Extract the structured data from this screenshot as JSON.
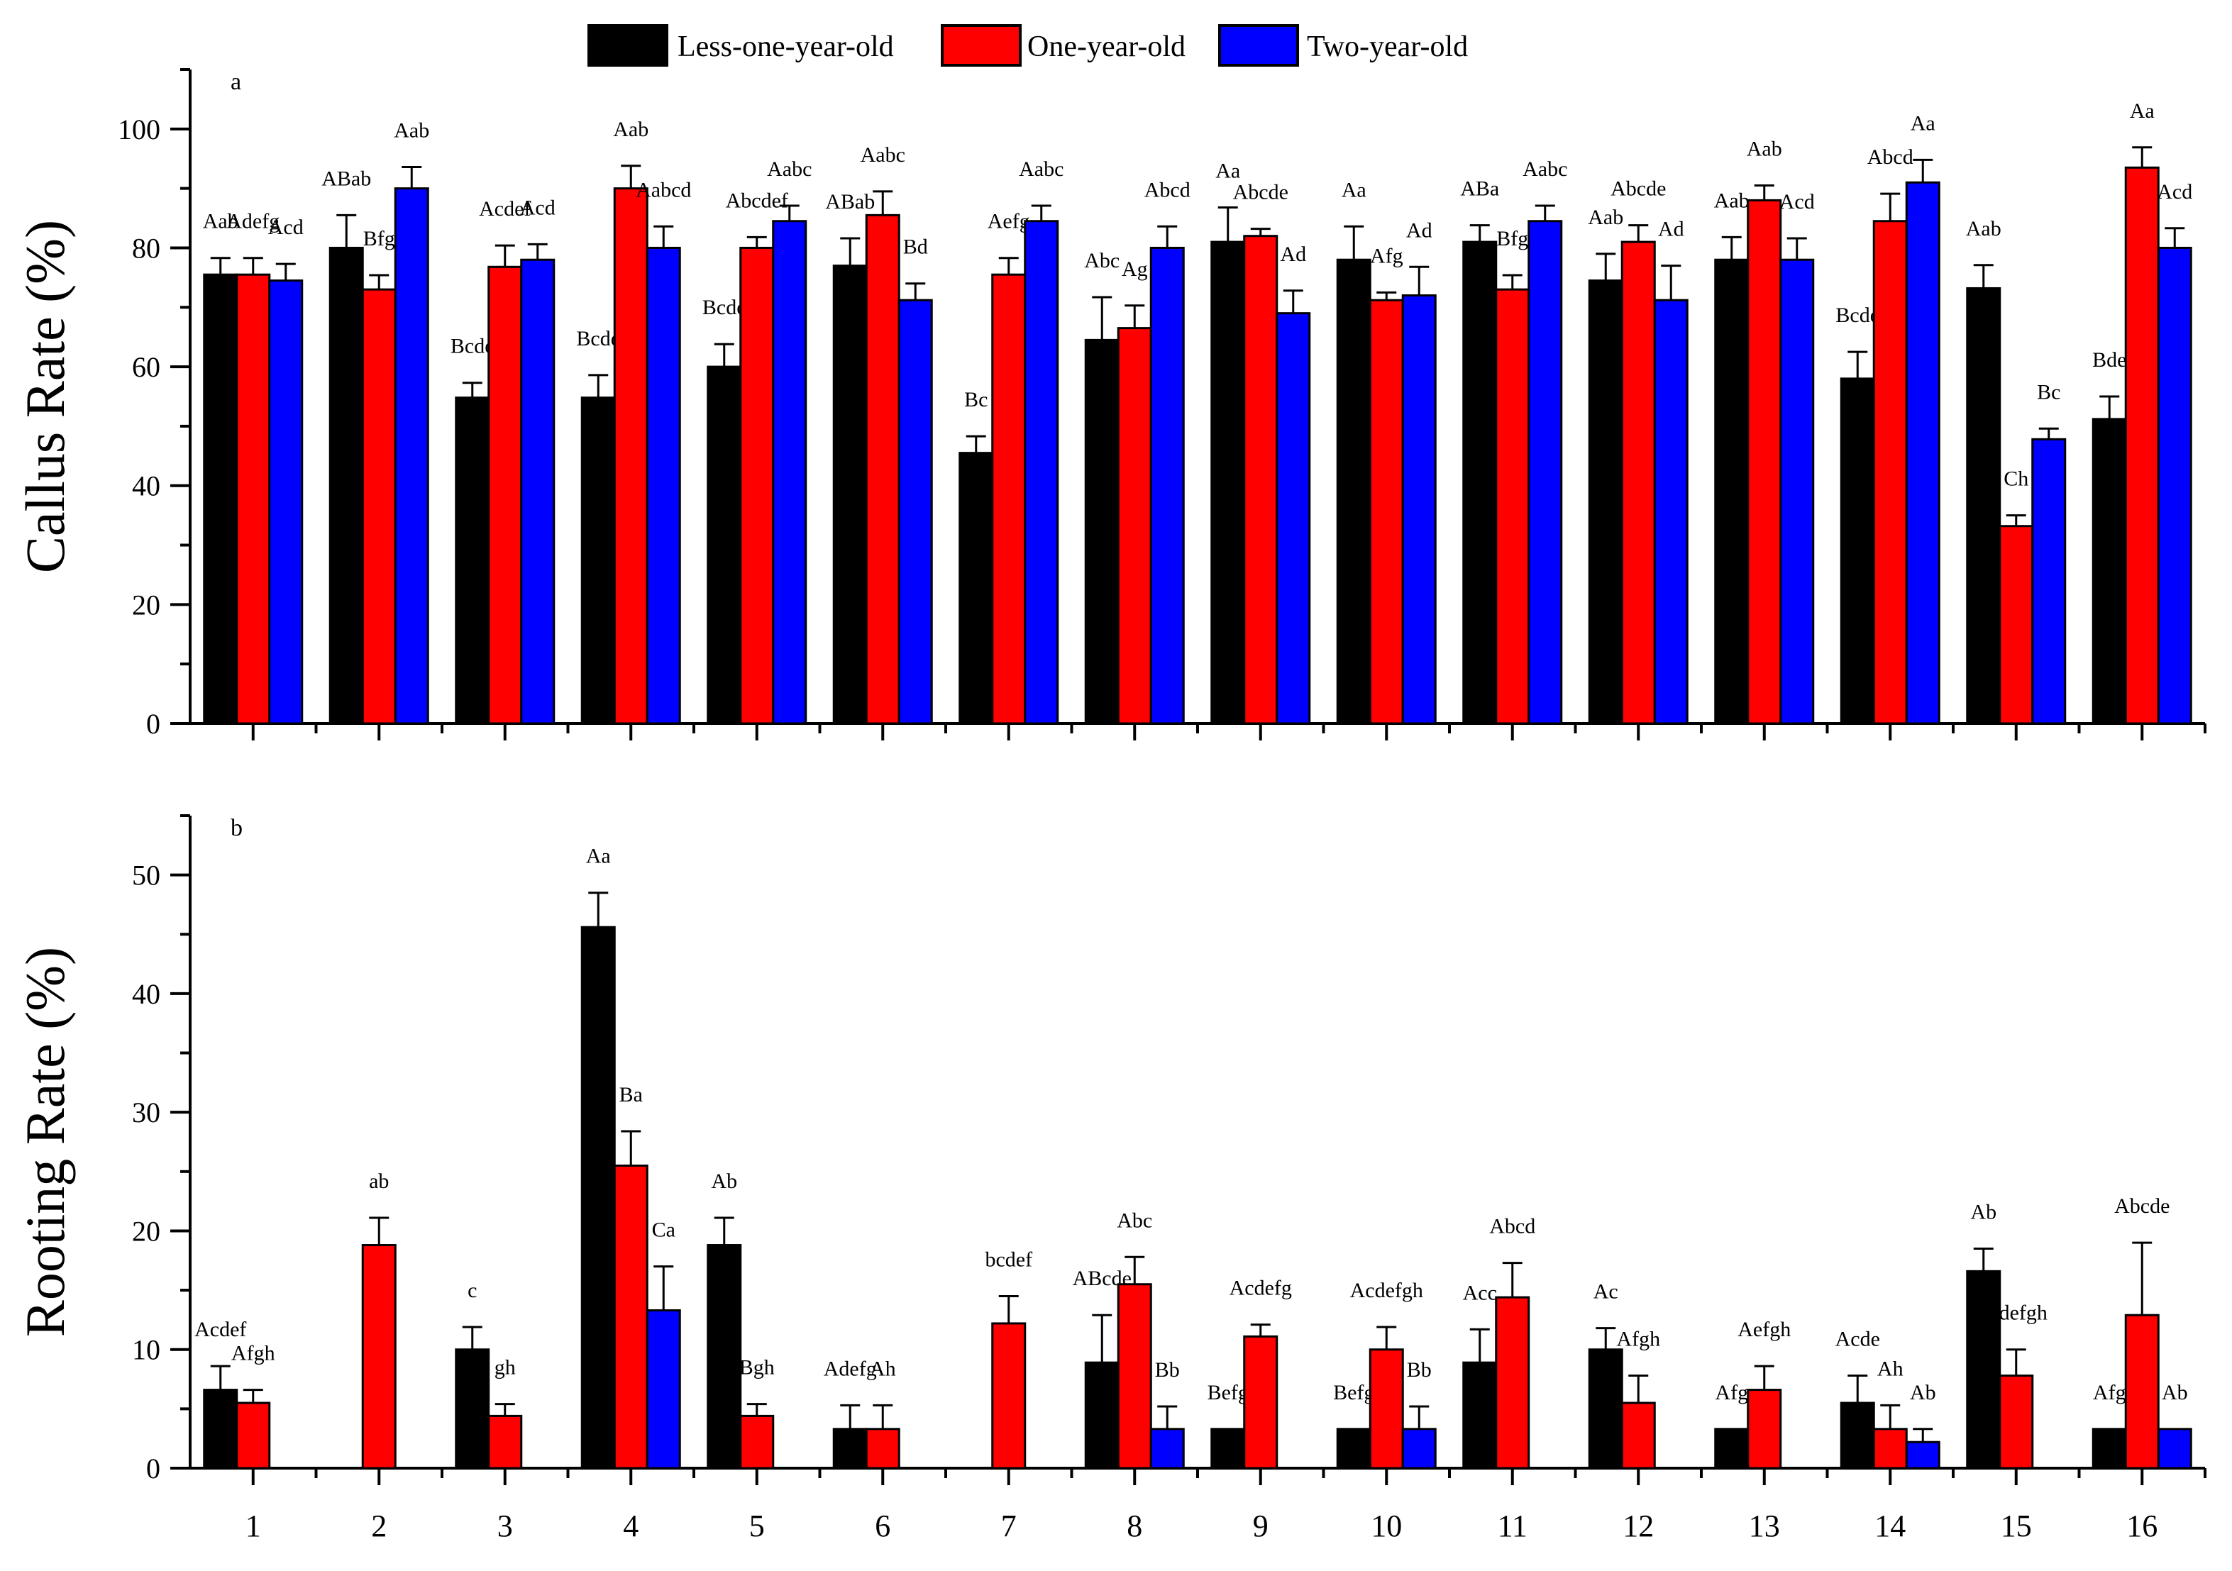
{
  "chart_data": {
    "type": "bar",
    "categories": [
      "1",
      "2",
      "3",
      "4",
      "5",
      "6",
      "7",
      "8",
      "9",
      "10",
      "11",
      "12",
      "13",
      "14",
      "15",
      "16"
    ],
    "legend": {
      "placement": "top-center",
      "entries": [
        {
          "name": "Less-one-year-old",
          "color": "#000000"
        },
        {
          "name": "One-year-old",
          "color": "#ff0000"
        },
        {
          "name": "Two-year-old",
          "color": "#0000ff"
        }
      ]
    },
    "panels": [
      {
        "id": "a",
        "panel_label": "a",
        "ylabel": "Callus Rate (%)",
        "xlabel": "",
        "ylim": [
          0,
          110
        ],
        "yticks": [
          0,
          20,
          40,
          60,
          80,
          100
        ],
        "series": [
          {
            "name": "Less-one-year-old",
            "values": [
              75.5,
              80,
              54.8,
              54.8,
              60,
              77,
              45.5,
              64.5,
              81,
              78,
              81,
              74.5,
              78,
              58,
              73.2,
              51.2
            ],
            "errors": [
              2.8,
              5.5,
              2.5,
              3.8,
              3.8,
              4.6,
              2.8,
              7.2,
              5.8,
              5.6,
              2.8,
              4.5,
              3.8,
              4.5,
              3.9,
              3.8
            ],
            "labels": [
              "Aab",
              "ABab",
              "Bcde",
              "Bcde",
              "Bcde",
              "ABab",
              "Bc",
              "Abc",
              "Aa",
              "Aa",
              "ABa",
              "Aab",
              "Aab",
              "Bcde",
              "Aab",
              "Bde"
            ]
          },
          {
            "name": "One-year-old",
            "values": [
              75.5,
              73,
              76.8,
              90,
              80,
              85.5,
              75.5,
              66.5,
              82,
              71.2,
              73,
              81,
              88,
              84.5,
              33.2,
              93.5
            ],
            "errors": [
              2.8,
              2.4,
              3.6,
              3.8,
              1.8,
              4,
              2.8,
              3.8,
              1.2,
              1.3,
              2.4,
              2.8,
              2.5,
              4.6,
              1.8,
              3.4
            ],
            "labels": [
              "Adefg",
              "Bfg",
              "Acdef",
              "Aab",
              "Abcdef",
              "Aabc",
              "Aefg",
              "Ag",
              "Abcde",
              "Afg",
              "Bfg",
              "Abcde",
              "Aab",
              "Abcd",
              "Ch",
              "Aa"
            ]
          },
          {
            "name": "Two-year-old",
            "values": [
              74.5,
              90,
              78,
              80,
              84.5,
              71.2,
              84.5,
              80,
              69,
              72,
              84.5,
              71.2,
              78,
              91,
              47.8,
              80
            ],
            "errors": [
              2.8,
              3.6,
              2.6,
              3.6,
              2.6,
              2.8,
              2.6,
              3.6,
              3.8,
              4.8,
              2.6,
              5.8,
              3.6,
              3.8,
              1.8,
              3.3
            ],
            "labels": [
              "Acd",
              "Aab",
              "Acd",
              "Aabcd",
              "Aabc",
              "Bd",
              "Aabc",
              "Abcd",
              "Ad",
              "Ad",
              "Aabc",
              "Ad",
              "Acd",
              "Aa",
              "Bc",
              "Acd"
            ]
          }
        ]
      },
      {
        "id": "b",
        "panel_label": "b",
        "ylabel": "Rooting Rate (%)",
        "xlabel": "",
        "ylim": [
          0,
          55
        ],
        "yticks": [
          0,
          10,
          20,
          30,
          40,
          50
        ],
        "series": [
          {
            "name": "Less-one-year-old",
            "values": [
              6.6,
              null,
              10,
              45.6,
              18.8,
              3.3,
              null,
              8.9,
              3.3,
              3.3,
              8.9,
              10,
              3.3,
              5.5,
              16.6,
              3.3
            ],
            "errors": [
              2,
              null,
              1.9,
              2.9,
              2.3,
              2,
              null,
              4,
              null,
              null,
              2.8,
              1.8,
              null,
              2.3,
              1.9,
              null
            ],
            "labels": [
              "Acdef",
              "",
              "c",
              "Aa",
              "Ab",
              "Adefg",
              "",
              "ABcde",
              "Befg",
              "Befg",
              "Acc",
              "Ac",
              "Afg",
              "Acde",
              "Ab",
              "Afg"
            ]
          },
          {
            "name": "One-year-old",
            "values": [
              5.5,
              18.8,
              4.4,
              25.5,
              4.4,
              3.3,
              12.2,
              15.5,
              11.1,
              10,
              14.4,
              5.5,
              6.6,
              3.3,
              7.8,
              12.9
            ],
            "errors": [
              1.1,
              2.3,
              1,
              2.9,
              1,
              2,
              2.3,
              2.3,
              1,
              1.9,
              2.9,
              2.3,
              2,
              2,
              2.2,
              6.1
            ],
            "labels": [
              "Afgh",
              "ab",
              "gh",
              "Ba",
              "Bgh",
              "Ah",
              "bcdef",
              "Abc",
              "Acdefg",
              "Acdefgh",
              "Abcd",
              "Afgh",
              "Aefgh",
              "Ah",
              "Bdefgh",
              "Abcde"
            ]
          },
          {
            "name": "Two-year-old",
            "values": [
              null,
              null,
              null,
              13.3,
              null,
              null,
              null,
              3.3,
              null,
              3.3,
              null,
              null,
              null,
              2.2,
              null,
              3.3
            ],
            "errors": [
              null,
              null,
              null,
              3.7,
              null,
              null,
              null,
              1.9,
              null,
              1.9,
              null,
              null,
              null,
              1.1,
              null,
              null
            ],
            "labels": [
              "",
              "",
              "",
              "Ca",
              "",
              "",
              "",
              "Bb",
              "",
              "Bb",
              "",
              "",
              "",
              "Ab",
              "",
              "Ab"
            ]
          }
        ]
      }
    ]
  }
}
